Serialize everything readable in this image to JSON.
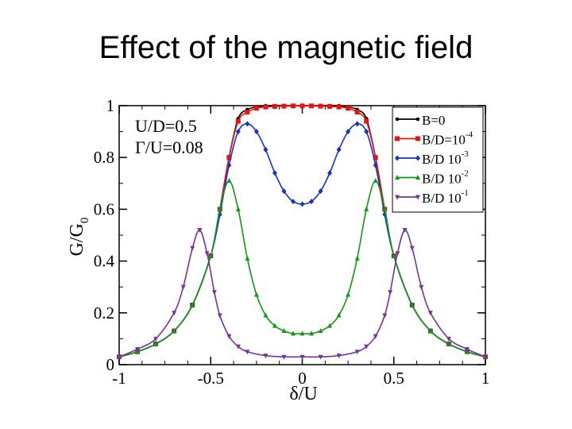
{
  "slide": {
    "title": "Effect of the magnetic field"
  },
  "chart_data": {
    "type": "line",
    "title": "",
    "xlabel": "δ/U",
    "ylabel_main": "G/G",
    "ylabel_sub": "0",
    "xlim": [
      -1,
      1
    ],
    "ylim": [
      0,
      1
    ],
    "x_ticks": [
      {
        "v": -1,
        "label": "-1"
      },
      {
        "v": -0.5,
        "label": "-0.5"
      },
      {
        "v": 0,
        "label": "0"
      },
      {
        "v": 0.5,
        "label": "0.5"
      },
      {
        "v": 1,
        "label": "1"
      }
    ],
    "y_ticks": [
      {
        "v": 0,
        "label": "0"
      },
      {
        "v": 0.2,
        "label": "0.2"
      },
      {
        "v": 0.4,
        "label": "0.4"
      },
      {
        "v": 0.6,
        "label": "0.6"
      },
      {
        "v": 0.8,
        "label": "0.8"
      },
      {
        "v": 1,
        "label": "1"
      }
    ],
    "annotations": [
      "U/D=0.5",
      "Γ/U=0.08"
    ],
    "series": [
      {
        "name": "B=0",
        "legend_main": "B=0",
        "legend_sup": "",
        "color": "#000000",
        "marker": "circle",
        "x": [
          -1,
          -0.9,
          -0.8,
          -0.7,
          -0.6,
          -0.5,
          -0.45,
          -0.4,
          -0.35,
          -0.3,
          -0.25,
          -0.2,
          -0.15,
          -0.1,
          -0.05,
          0,
          0.05,
          0.1,
          0.15,
          0.2,
          0.25,
          0.3,
          0.35,
          0.4,
          0.45,
          0.5,
          0.6,
          0.7,
          0.8,
          0.9,
          1
        ],
        "y": [
          0.03,
          0.05,
          0.08,
          0.13,
          0.23,
          0.42,
          0.6,
          0.8,
          0.95,
          0.985,
          0.995,
          1,
          1,
          1,
          1,
          1,
          1,
          1,
          1,
          1,
          0.995,
          0.985,
          0.95,
          0.8,
          0.6,
          0.42,
          0.23,
          0.13,
          0.08,
          0.05,
          0.03
        ]
      },
      {
        "name": "B/D=10^-4",
        "legend_main": "B/D=10",
        "legend_sup": "-4",
        "color": "#ee1111",
        "marker": "square",
        "x": [
          -1,
          -0.9,
          -0.8,
          -0.7,
          -0.6,
          -0.5,
          -0.45,
          -0.4,
          -0.35,
          -0.3,
          -0.25,
          -0.2,
          -0.15,
          -0.1,
          -0.05,
          0,
          0.05,
          0.1,
          0.15,
          0.2,
          0.25,
          0.3,
          0.35,
          0.4,
          0.45,
          0.5,
          0.6,
          0.7,
          0.8,
          0.9,
          1
        ],
        "y": [
          0.03,
          0.05,
          0.08,
          0.13,
          0.23,
          0.42,
          0.6,
          0.8,
          0.94,
          0.975,
          0.99,
          0.995,
          0.997,
          0.998,
          0.999,
          0.999,
          0.999,
          0.998,
          0.997,
          0.995,
          0.99,
          0.975,
          0.94,
          0.8,
          0.6,
          0.42,
          0.23,
          0.13,
          0.08,
          0.05,
          0.03
        ]
      },
      {
        "name": "B/D=10^-3",
        "legend_main": "B/D  10",
        "legend_sup": "-3",
        "color": "#1133cc",
        "marker": "diamond",
        "x": [
          -1,
          -0.9,
          -0.8,
          -0.7,
          -0.6,
          -0.5,
          -0.45,
          -0.4,
          -0.35,
          -0.3,
          -0.25,
          -0.2,
          -0.15,
          -0.1,
          -0.05,
          0,
          0.05,
          0.1,
          0.15,
          0.2,
          0.25,
          0.3,
          0.35,
          0.4,
          0.45,
          0.5,
          0.6,
          0.7,
          0.8,
          0.9,
          1
        ],
        "y": [
          0.03,
          0.05,
          0.08,
          0.13,
          0.23,
          0.42,
          0.58,
          0.77,
          0.9,
          0.93,
          0.9,
          0.83,
          0.74,
          0.67,
          0.63,
          0.62,
          0.63,
          0.67,
          0.74,
          0.83,
          0.9,
          0.93,
          0.9,
          0.77,
          0.58,
          0.42,
          0.23,
          0.13,
          0.08,
          0.05,
          0.03
        ]
      },
      {
        "name": "B/D=10^-2",
        "legend_main": "B/D  10",
        "legend_sup": "-2",
        "color": "#119911",
        "marker": "triangle-up",
        "x": [
          -1,
          -0.9,
          -0.8,
          -0.7,
          -0.6,
          -0.5,
          -0.45,
          -0.4,
          -0.35,
          -0.3,
          -0.25,
          -0.2,
          -0.15,
          -0.1,
          -0.05,
          0,
          0.05,
          0.1,
          0.15,
          0.2,
          0.25,
          0.3,
          0.35,
          0.4,
          0.45,
          0.5,
          0.6,
          0.7,
          0.8,
          0.9,
          1
        ],
        "y": [
          0.03,
          0.05,
          0.08,
          0.13,
          0.23,
          0.42,
          0.6,
          0.71,
          0.6,
          0.41,
          0.27,
          0.19,
          0.15,
          0.13,
          0.12,
          0.12,
          0.12,
          0.13,
          0.15,
          0.19,
          0.27,
          0.41,
          0.6,
          0.71,
          0.6,
          0.42,
          0.23,
          0.13,
          0.08,
          0.05,
          0.03
        ]
      },
      {
        "name": "B/D=10^-1",
        "legend_main": "B/D  10",
        "legend_sup": "-1",
        "color": "#773399",
        "marker": "triangle-down",
        "x": [
          -1,
          -0.9,
          -0.8,
          -0.7,
          -0.65,
          -0.6,
          -0.56,
          -0.52,
          -0.48,
          -0.45,
          -0.4,
          -0.35,
          -0.3,
          -0.2,
          -0.1,
          0,
          0.1,
          0.2,
          0.3,
          0.35,
          0.4,
          0.45,
          0.48,
          0.52,
          0.56,
          0.6,
          0.65,
          0.7,
          0.8,
          0.9,
          1
        ],
        "y": [
          0.03,
          0.06,
          0.1,
          0.2,
          0.3,
          0.45,
          0.52,
          0.43,
          0.28,
          0.19,
          0.11,
          0.07,
          0.05,
          0.035,
          0.03,
          0.03,
          0.03,
          0.035,
          0.05,
          0.07,
          0.11,
          0.19,
          0.28,
          0.43,
          0.52,
          0.45,
          0.3,
          0.2,
          0.1,
          0.06,
          0.03
        ]
      }
    ]
  }
}
